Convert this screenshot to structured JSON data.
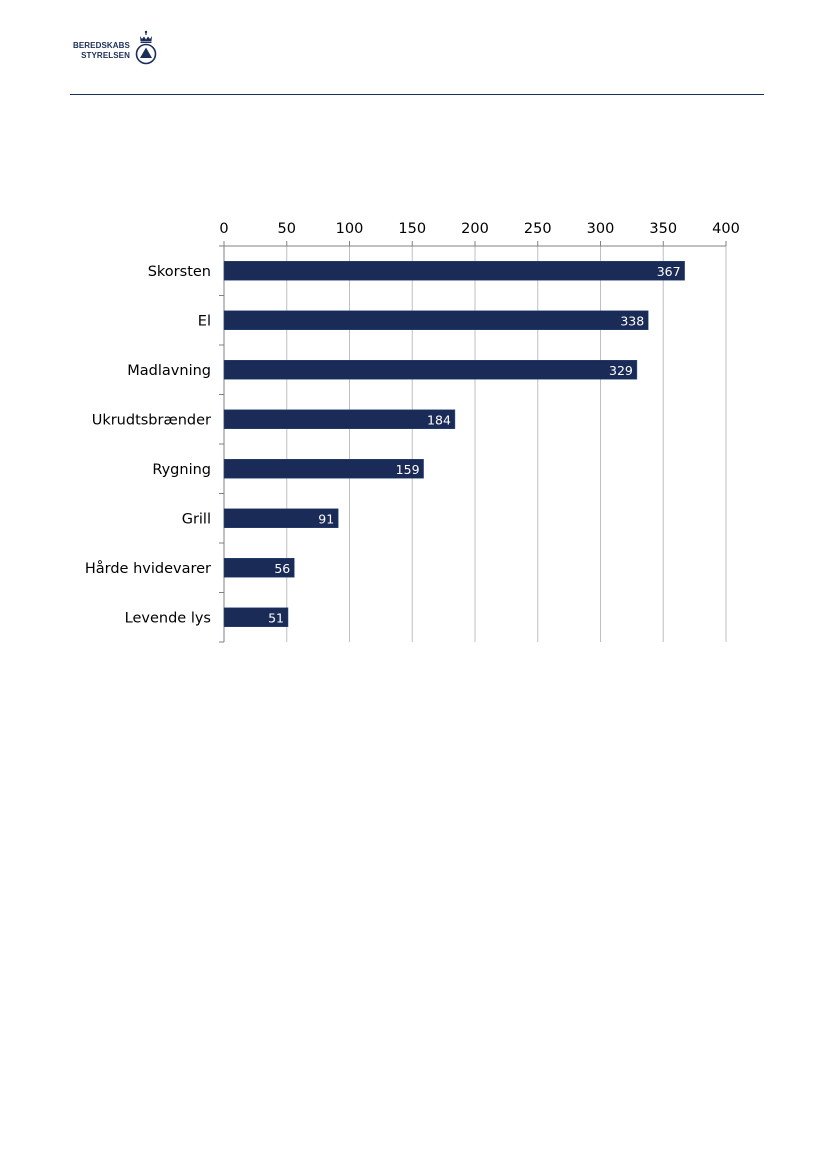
{
  "header": {
    "logo_line1": "BEREDSKABS",
    "logo_line2": "STYRELSEN"
  },
  "colors": {
    "bar": "#1a2b57",
    "brand": "#1a2e5a",
    "grid": "#bfbfbf",
    "axis": "#808080"
  },
  "icons": {
    "logo": "crown-triangle-emblem"
  },
  "chart_data": {
    "type": "bar",
    "orientation": "horizontal",
    "categories": [
      "Skorsten",
      "El",
      "Madlavning",
      "Ukrudtsbrænder",
      "Rygning",
      "Grill",
      "Hårde hvidevarer",
      "Levende lys"
    ],
    "values": [
      367,
      338,
      329,
      184,
      159,
      91,
      56,
      51
    ],
    "data_labels": [
      "367",
      "338",
      "329",
      "184",
      "159",
      "91",
      "56",
      "51"
    ],
    "xticks": [
      "0",
      "50",
      "100",
      "150",
      "200",
      "250",
      "300",
      "350",
      "400"
    ],
    "xlim": [
      0,
      400
    ],
    "x_axis_position": "top",
    "grid": true,
    "legend": "none"
  }
}
